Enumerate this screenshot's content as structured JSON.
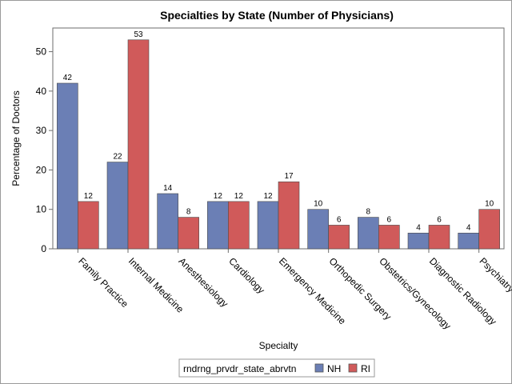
{
  "chart_data": {
    "type": "bar",
    "title": "Specialties by State (Number of Physicians)",
    "xlabel": "Specialty",
    "ylabel": "Percentage of Doctors",
    "ylim": [
      0,
      56
    ],
    "yticks": [
      0,
      10,
      20,
      30,
      40,
      50
    ],
    "grid": false,
    "legend_position": "bottom",
    "legend_title": "rndrng_prvdr_state_abrvtn",
    "categories": [
      "Family Practice",
      "Internal Medicine",
      "Anesthesiology",
      "Cardiology",
      "Emergency Medicine",
      "Orthopedic Surgery",
      "Obstetrics/Gynecology",
      "Diagnostic Radiology",
      "Psychiatry"
    ],
    "series": [
      {
        "name": "NH",
        "color": "#6b7fb5",
        "values": [
          42,
          22,
          14,
          12,
          12,
          10,
          8,
          4,
          4
        ]
      },
      {
        "name": "RI",
        "color": "#d05a5a",
        "values": [
          12,
          53,
          8,
          12,
          17,
          6,
          6,
          6,
          10
        ]
      }
    ]
  }
}
